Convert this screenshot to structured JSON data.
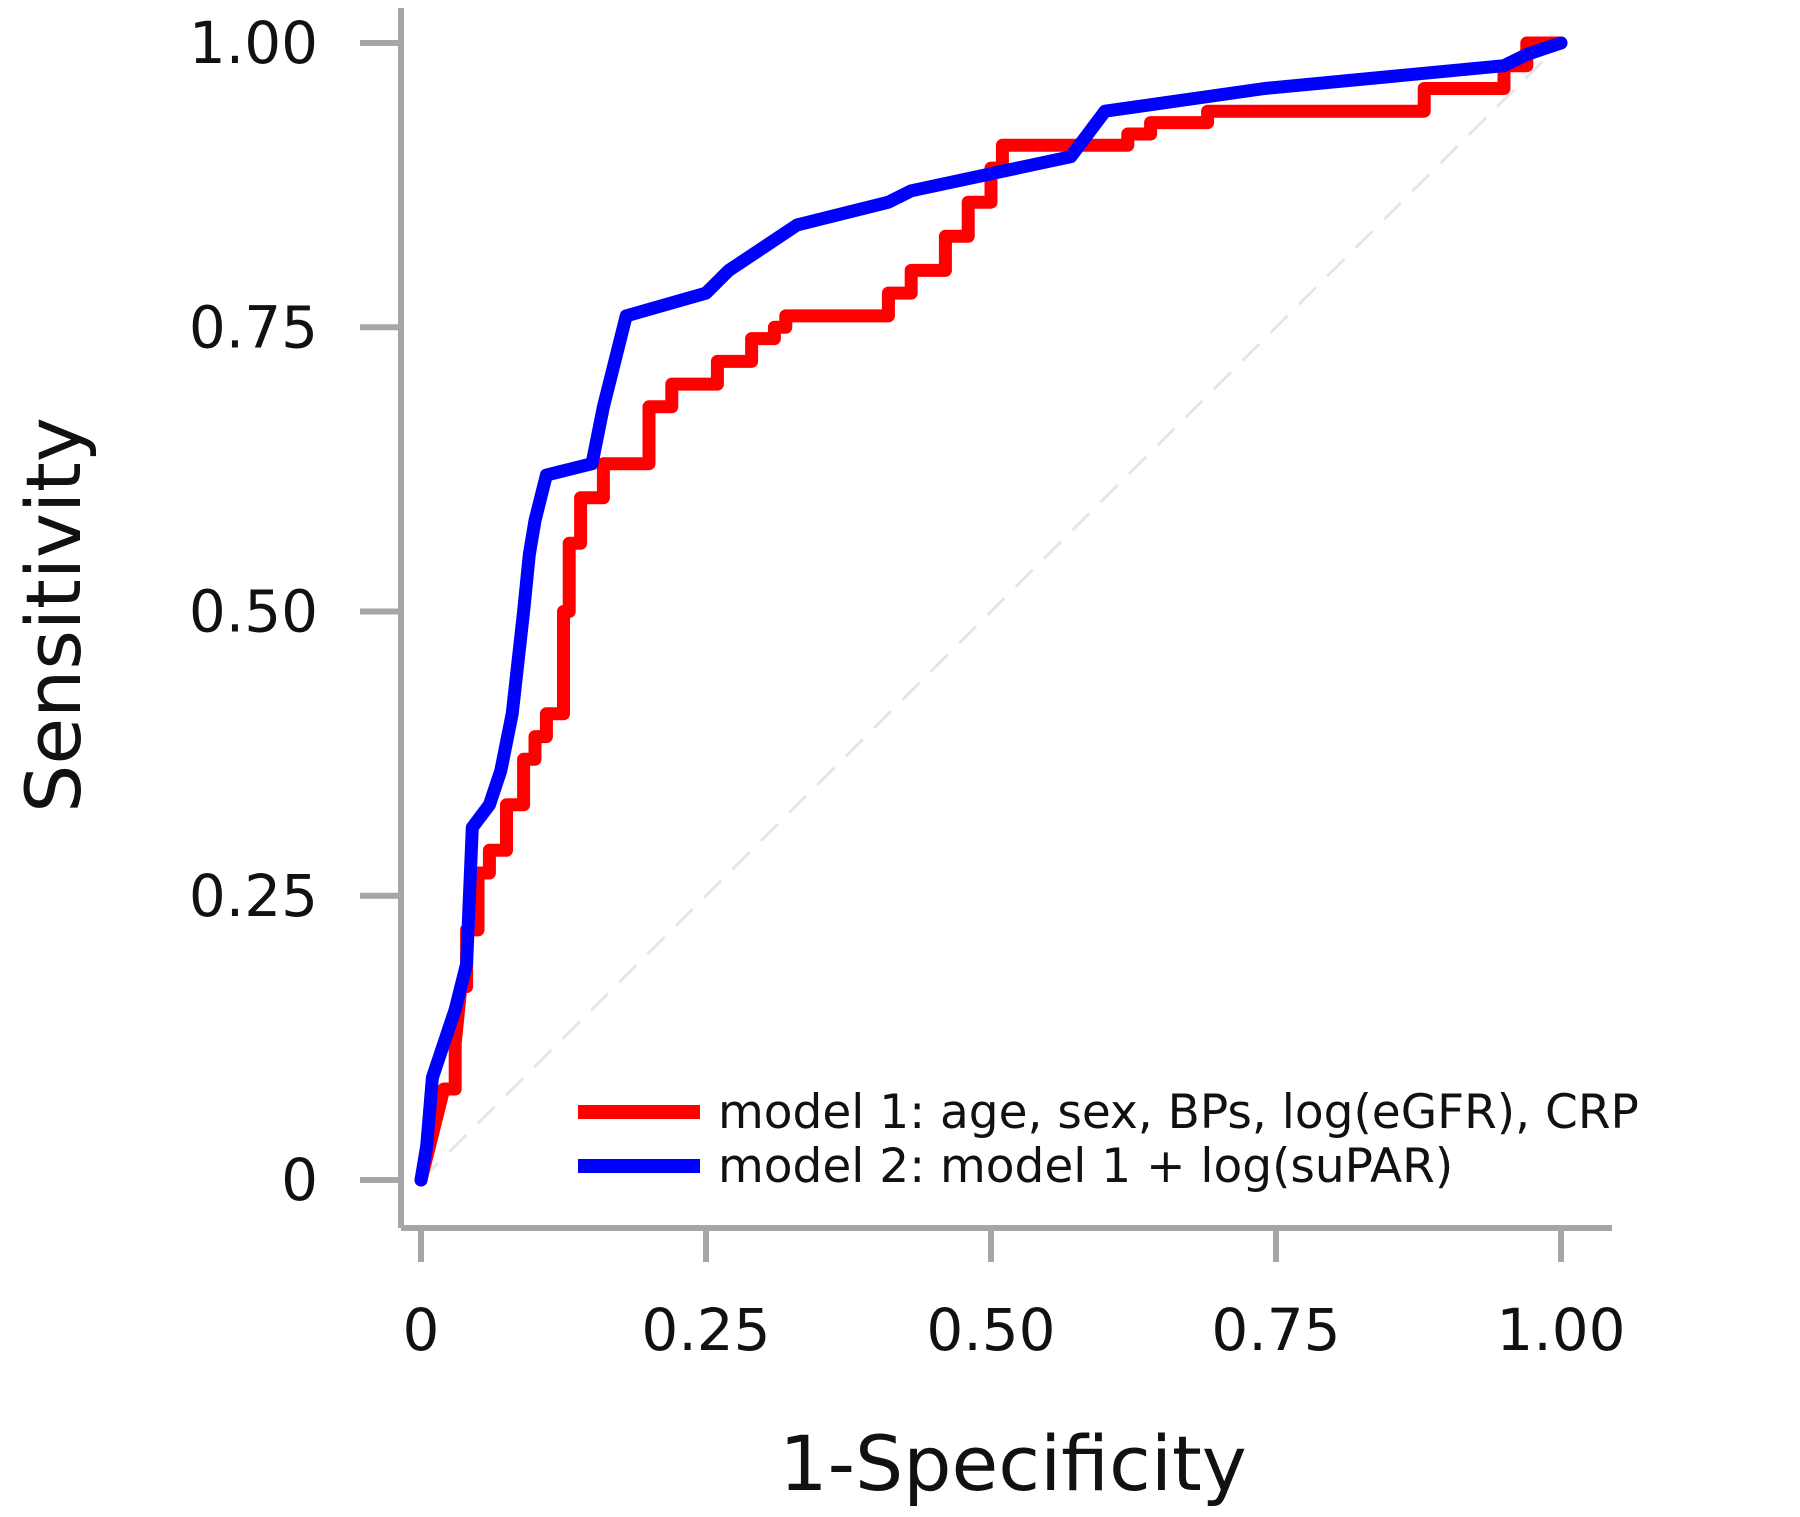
{
  "chart_data": {
    "type": "line",
    "title": "",
    "xlabel": "1-Specificity",
    "ylabel": "Sensitivity",
    "xlim": [
      0,
      1
    ],
    "ylim": [
      0,
      1
    ],
    "xticks": [
      0,
      0.25,
      0.5,
      0.75,
      1.0
    ],
    "xtick_labels": [
      "0",
      "0.25",
      "0.50",
      "0.75",
      "1.00"
    ],
    "yticks": [
      0,
      0.25,
      0.5,
      0.75,
      1.0
    ],
    "ytick_labels": [
      "0",
      "0.25",
      "0.50",
      "0.75",
      "1.00"
    ],
    "grid": false,
    "legend_position": "bottom-right",
    "reference_line": {
      "x": [
        0,
        1
      ],
      "y": [
        0,
        1
      ],
      "color": "#e6e6e6",
      "style": "dashed"
    },
    "series": [
      {
        "name": "model 1: age, sex, BPs, log(eGFR), CRP",
        "color": "#ff0000",
        "x": [
          0,
          0.02,
          0.03,
          0.03,
          0.035,
          0.04,
          0.04,
          0.05,
          0.05,
          0.06,
          0.06,
          0.075,
          0.075,
          0.09,
          0.09,
          0.1,
          0.1,
          0.11,
          0.11,
          0.125,
          0.125,
          0.13,
          0.13,
          0.14,
          0.14,
          0.16,
          0.16,
          0.2,
          0.2,
          0.22,
          0.22,
          0.26,
          0.26,
          0.29,
          0.29,
          0.31,
          0.31,
          0.32,
          0.32,
          0.41,
          0.41,
          0.43,
          0.43,
          0.46,
          0.46,
          0.48,
          0.48,
          0.5,
          0.5,
          0.51,
          0.51,
          0.62,
          0.62,
          0.64,
          0.64,
          0.69,
          0.69,
          0.88,
          0.88,
          0.95,
          0.95,
          0.97,
          0.97,
          1.0
        ],
        "y": [
          0,
          0.08,
          0.08,
          0.12,
          0.17,
          0.17,
          0.22,
          0.22,
          0.27,
          0.27,
          0.29,
          0.29,
          0.33,
          0.33,
          0.37,
          0.37,
          0.39,
          0.39,
          0.41,
          0.41,
          0.5,
          0.5,
          0.56,
          0.56,
          0.6,
          0.6,
          0.63,
          0.63,
          0.68,
          0.68,
          0.7,
          0.7,
          0.72,
          0.72,
          0.74,
          0.74,
          0.75,
          0.75,
          0.76,
          0.76,
          0.78,
          0.78,
          0.8,
          0.8,
          0.83,
          0.83,
          0.86,
          0.86,
          0.89,
          0.89,
          0.91,
          0.91,
          0.92,
          0.92,
          0.93,
          0.93,
          0.94,
          0.94,
          0.96,
          0.96,
          0.98,
          0.98,
          1.0,
          1.0
        ]
      },
      {
        "name": "model 2: model 1 + log(suPAR)",
        "color": "#0000ff",
        "x": [
          0,
          0.005,
          0.005,
          0.01,
          0.01,
          0.02,
          0.02,
          0.03,
          0.03,
          0.04,
          0.04,
          0.045,
          0.045,
          0.06,
          0.06,
          0.07,
          0.07,
          0.08,
          0.08,
          0.09,
          0.09,
          0.095,
          0.095,
          0.1,
          0.1,
          0.11,
          0.11,
          0.15,
          0.15,
          0.16,
          0.16,
          0.17,
          0.17,
          0.18,
          0.18,
          0.25,
          0.25,
          0.27,
          0.27,
          0.3,
          0.3,
          0.33,
          0.33,
          0.41,
          0.41,
          0.43,
          0.43,
          0.57,
          0.57,
          0.6,
          0.6,
          0.74,
          0.74,
          0.95,
          0.95,
          0.97,
          0.97,
          1.0
        ],
        "y": [
          0,
          0.03,
          0.03,
          0.09,
          0.09,
          0.12,
          0.12,
          0.15,
          0.15,
          0.19,
          0.19,
          0.31,
          0.31,
          0.33,
          0.33,
          0.36,
          0.36,
          0.41,
          0.41,
          0.5,
          0.5,
          0.55,
          0.55,
          0.58,
          0.58,
          0.62,
          0.62,
          0.63,
          0.63,
          0.68,
          0.68,
          0.72,
          0.72,
          0.76,
          0.76,
          0.78,
          0.78,
          0.8,
          0.8,
          0.82,
          0.82,
          0.84,
          0.84,
          0.86,
          0.86,
          0.87,
          0.87,
          0.9,
          0.9,
          0.94,
          0.94,
          0.96,
          0.96,
          0.98,
          0.98,
          0.99,
          0.99,
          1.0
        ]
      }
    ]
  }
}
